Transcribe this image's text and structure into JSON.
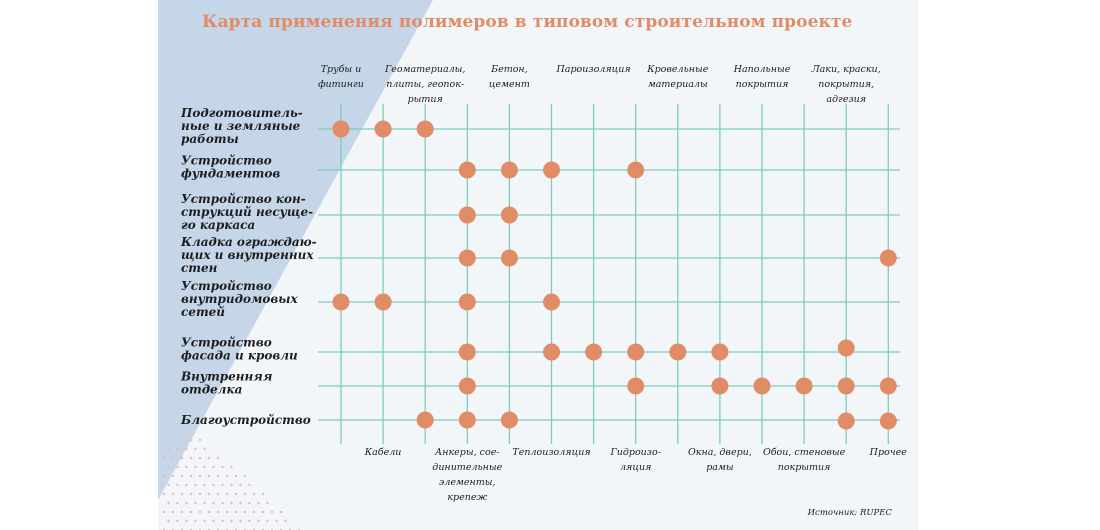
{
  "chart_data": {
    "type": "matrix",
    "title": "Карта применения полимеров в типовом строительном проекте",
    "columns": [
      {
        "label": "Трубы и фитинги",
        "lines": [
          "Трубы и",
          "фитинги"
        ],
        "position": "top"
      },
      {
        "label": "Кабели",
        "lines": [
          "Кабели"
        ],
        "position": "bottom"
      },
      {
        "label": "Геоматериалы, плиты, геопок-рытия",
        "lines": [
          "Геоматериалы,",
          "плиты, геопок-",
          "рытия"
        ],
        "position": "top"
      },
      {
        "label": "Анкеры, соединительные элементы, крепеж",
        "lines": [
          "Анкеры, сое-",
          "динительные",
          "элементы,",
          "крепеж"
        ],
        "position": "bottom"
      },
      {
        "label": "Бетон, цемент",
        "lines": [
          "Бетон,",
          "цемент"
        ],
        "position": "top"
      },
      {
        "label": "Теплоизоляция",
        "lines": [
          "Теплоизоляция"
        ],
        "position": "bottom"
      },
      {
        "label": "Пароизоляция",
        "lines": [
          "Пароизоляция"
        ],
        "position": "top"
      },
      {
        "label": "Гидроизоляция",
        "lines": [
          "Гидроизо-",
          "ляция"
        ],
        "position": "bottom"
      },
      {
        "label": "Кровельные материалы",
        "lines": [
          "Кровельные",
          "материалы"
        ],
        "position": "top"
      },
      {
        "label": "Окна, двери, рамы",
        "lines": [
          "Окна, двери,",
          "рамы"
        ],
        "position": "bottom"
      },
      {
        "label": "Напольные покрытия",
        "lines": [
          "Напольные",
          "покрытия"
        ],
        "position": "top"
      },
      {
        "label": "Обои, стеновые покрытия",
        "lines": [
          "Обои, стеновые",
          "покрытия"
        ],
        "position": "bottom"
      },
      {
        "label": "Лаки, краски, покрытия, адгезия",
        "lines": [
          "Лаки, краски,",
          "покрытия,",
          "адгезия"
        ],
        "position": "top"
      },
      {
        "label": "Прочее",
        "lines": [
          "Прочее"
        ],
        "position": "bottom"
      }
    ],
    "rows": [
      {
        "label": "Подготовительные и земляные работы",
        "lines": [
          "Подготовитель-",
          "ные и земляные",
          "работы"
        ]
      },
      {
        "label": "Устройство фундаментов",
        "lines": [
          "Устройство",
          "фундаментов"
        ]
      },
      {
        "label": "Устройство конструкций несущего каркаса",
        "lines": [
          "Устройство кон-",
          "струкций несуще-",
          "го каркаса"
        ]
      },
      {
        "label": "Кладка ограждающих и внутренних стен",
        "lines": [
          "Кладка ограждаю-",
          "щих и внутренних",
          "стен"
        ]
      },
      {
        "label": "Устройство внутридомовых сетей",
        "lines": [
          "Устройство",
          "внутридомовых",
          "сетей"
        ]
      },
      {
        "label": "Устройство фасада и кровли",
        "lines": [
          "Устройство",
          "фасада и кровли"
        ]
      },
      {
        "label": "Внутренняя отделка",
        "lines": [
          "Внутренняя",
          "отделка"
        ]
      },
      {
        "label": "Благоустройство",
        "lines": [
          "Благоустройство"
        ]
      }
    ],
    "cells": [
      [
        0,
        1,
        2
      ],
      [
        3,
        4,
        5,
        7
      ],
      [
        3,
        4
      ],
      [
        3,
        4,
        13
      ],
      [
        0,
        1,
        3,
        5
      ],
      [
        3,
        5,
        6,
        7,
        8,
        9,
        12
      ],
      [
        3,
        7,
        9,
        10,
        11,
        12,
        13
      ],
      [
        2,
        3,
        4,
        12,
        13
      ]
    ],
    "colors": {
      "dot": "#e08c67",
      "grid": "#7ccdbe",
      "title": "#e08c67",
      "triangle": "#c5d6e8",
      "pink_dots": "#eab7bd",
      "background": "#f3f6f9"
    }
  },
  "source_label": "Источник: RUPEC"
}
